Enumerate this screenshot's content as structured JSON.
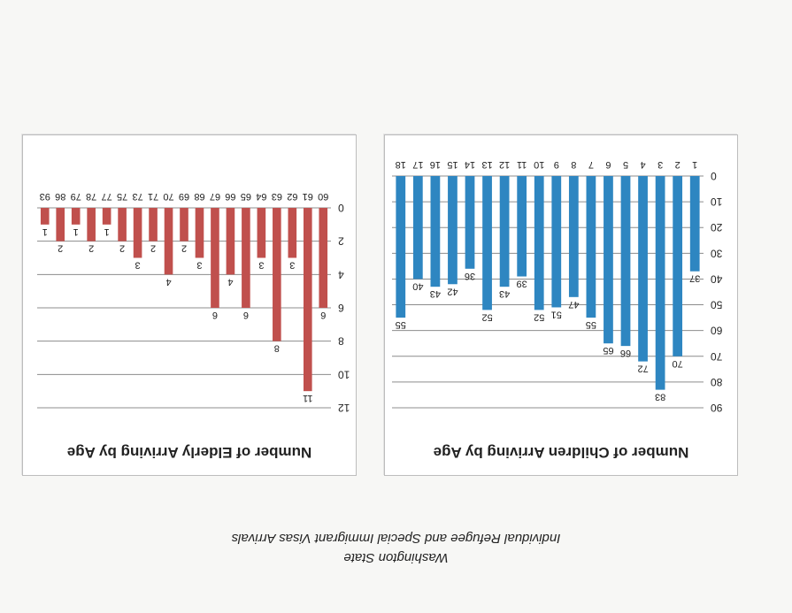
{
  "header": {
    "line1": "Washington State",
    "line2": "Individual Refugee and Special Immigrant Visas Arrivals"
  },
  "chart_data": [
    {
      "type": "bar",
      "title": "Number of Children Arriving by Age",
      "categories": [
        "1",
        "2",
        "3",
        "4",
        "5",
        "6",
        "7",
        "8",
        "9",
        "10",
        "11",
        "12",
        "13",
        "14",
        "15",
        "16",
        "17",
        "18"
      ],
      "values": [
        37,
        70,
        83,
        72,
        66,
        65,
        55,
        47,
        51,
        52,
        39,
        43,
        52,
        36,
        42,
        43,
        40,
        55
      ],
      "ylim": [
        0,
        90
      ],
      "yticks": [
        0,
        10,
        20,
        30,
        40,
        50,
        60,
        70,
        80,
        90
      ],
      "grid": true,
      "color": "#2e86c1"
    },
    {
      "type": "bar",
      "title": "Number of Elderly Arriving by Age",
      "categories": [
        "60",
        "61",
        "62",
        "63",
        "64",
        "65",
        "66",
        "67",
        "68",
        "69",
        "70",
        "71",
        "73",
        "75",
        "77",
        "78",
        "79",
        "86",
        "93"
      ],
      "values": [
        6,
        11,
        3,
        8,
        3,
        6,
        4,
        6,
        3,
        2,
        4,
        2,
        3,
        2,
        1,
        2,
        1,
        2,
        1
      ],
      "ylim": [
        0,
        12
      ],
      "yticks": [
        0,
        2,
        4,
        6,
        8,
        10,
        12
      ],
      "grid": true,
      "color": "#c0504d"
    }
  ]
}
